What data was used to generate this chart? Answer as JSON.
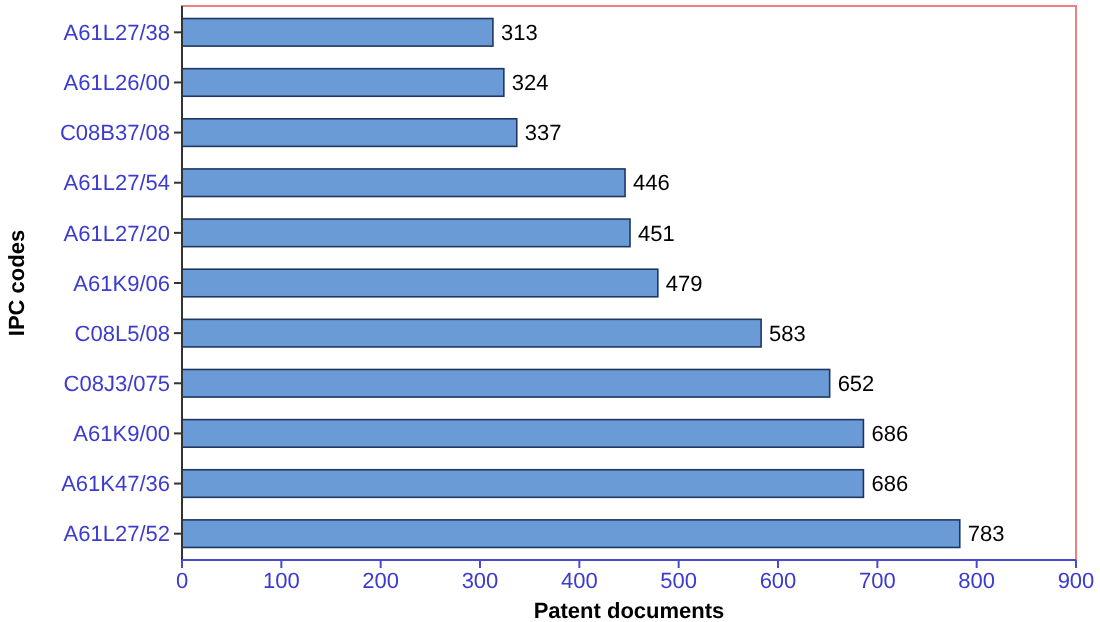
{
  "chart_data": {
    "type": "bar",
    "orientation": "horizontal",
    "xlabel": "Patent documents",
    "ylabel": "IPC codes",
    "categories": [
      "A61L27/38",
      "A61L26/00",
      "C08B37/08",
      "A61L27/54",
      "A61L27/20",
      "A61K9/06",
      "C08L5/08",
      "C08J3/075",
      "A61K9/00",
      "A61K47/36",
      "A61L27/52"
    ],
    "values": [
      313,
      324,
      337,
      446,
      451,
      479,
      583,
      652,
      686,
      686,
      783
    ],
    "color": "#6a9bd6",
    "data_labels": true,
    "grid": false,
    "xlim": [
      0,
      900
    ],
    "xticks": [
      0,
      100,
      200,
      300,
      400,
      500,
      600,
      700,
      800,
      900
    ]
  }
}
